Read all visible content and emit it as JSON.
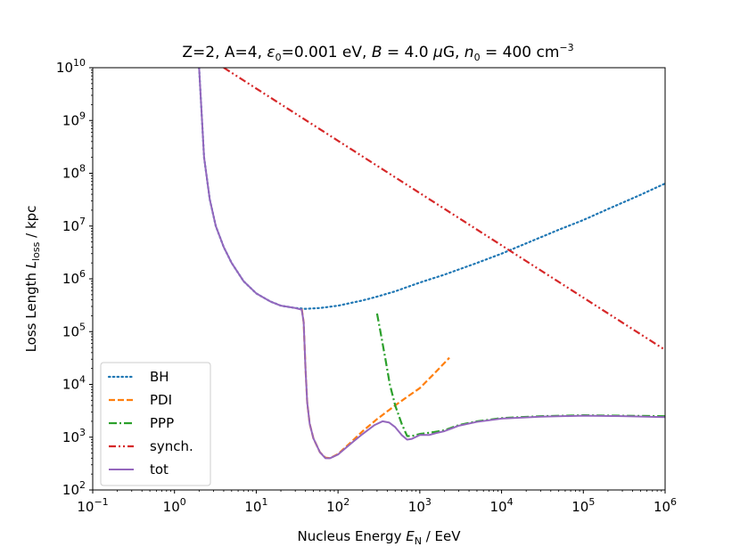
{
  "chart_data": {
    "type": "line",
    "title": {
      "prefix": "Z=2, A=4, ",
      "eps_sym": "ε",
      "eps_sub": "0",
      "eps_val": "=0.001 eV, ",
      "B_sym": "B",
      "B_val": " = 4.0 ",
      "B_unit_mu": "μ",
      "B_unit": "G, ",
      "n_sym": "n",
      "n_sub": "0",
      "n_val": " = 400 cm",
      "n_exp": "−3"
    },
    "xlabel": {
      "text": "Nucleus Energy ",
      "sym": "E",
      "sub": "N",
      "unit": " / EeV"
    },
    "ylabel": {
      "text": "Loss Length ",
      "sym": "L",
      "sub": "loss",
      "unit": " / kpc"
    },
    "x_scale": "log",
    "y_scale": "log",
    "xlim": [
      0.1,
      1000000
    ],
    "ylim": [
      100,
      10000000000
    ],
    "x_ticks": [
      {
        "base": "10",
        "exp": "−1",
        "value": 0.1
      },
      {
        "base": "10",
        "exp": "0",
        "value": 1
      },
      {
        "base": "10",
        "exp": "1",
        "value": 10
      },
      {
        "base": "10",
        "exp": "2",
        "value": 100
      },
      {
        "base": "10",
        "exp": "3",
        "value": 1000
      },
      {
        "base": "10",
        "exp": "4",
        "value": 10000
      },
      {
        "base": "10",
        "exp": "5",
        "value": 100000
      },
      {
        "base": "10",
        "exp": "6",
        "value": 1000000
      }
    ],
    "y_ticks": [
      {
        "base": "10",
        "exp": "2",
        "value": 100
      },
      {
        "base": "10",
        "exp": "3",
        "value": 1000
      },
      {
        "base": "10",
        "exp": "4",
        "value": 10000
      },
      {
        "base": "10",
        "exp": "5",
        "value": 100000
      },
      {
        "base": "10",
        "exp": "6",
        "value": 1000000
      },
      {
        "base": "10",
        "exp": "7",
        "value": 10000000
      },
      {
        "base": "10",
        "exp": "8",
        "value": 100000000
      },
      {
        "base": "10",
        "exp": "9",
        "value": 1000000000
      },
      {
        "base": "10",
        "exp": "10",
        "value": 10000000000
      }
    ],
    "grid": false,
    "legend_placement": "lower-left",
    "series": [
      {
        "name": "BH",
        "color": "#1f77b4",
        "style": "dotted",
        "points": [
          [
            2.0,
            10000000000.0
          ],
          [
            2.3,
            200000000.0
          ],
          [
            2.7,
            32000000.0
          ],
          [
            3.2,
            10000000.0
          ],
          [
            4.0,
            4000000.0
          ],
          [
            5.0,
            2000000.0
          ],
          [
            7.0,
            900000.0
          ],
          [
            10,
            530000.0
          ],
          [
            15,
            370000.0
          ],
          [
            20,
            310000.0
          ],
          [
            30,
            280000.0
          ],
          [
            40,
            270000.0
          ],
          [
            60,
            280000.0
          ],
          [
            100,
            310000.0
          ],
          [
            200,
            390000.0
          ],
          [
            300,
            460000.0
          ],
          [
            500,
            580000.0
          ],
          [
            1000,
            850000.0
          ],
          [
            2000,
            1200000.0
          ],
          [
            5000,
            2000000.0
          ],
          [
            10000,
            3000000.0
          ],
          [
            20000,
            4700000.0
          ],
          [
            50000,
            8500000.0
          ],
          [
            100000,
            13000000.0
          ],
          [
            200000,
            21000000.0
          ],
          [
            500000,
            39000000.0
          ],
          [
            1000000,
            64000000.0
          ]
        ]
      },
      {
        "name": "PDI",
        "color": "#ff7f0e",
        "style": "dashed",
        "points": [
          [
            36,
            270000.0
          ],
          [
            38,
            150000.0
          ],
          [
            40,
            20000.0
          ],
          [
            42,
            4500.0
          ],
          [
            45,
            1800.0
          ],
          [
            50,
            950.0
          ],
          [
            60,
            520.0
          ],
          [
            70,
            410.0
          ],
          [
            80,
            400.0
          ],
          [
            100,
            480.0
          ],
          [
            150,
            850.0
          ],
          [
            200,
            1300.0
          ],
          [
            300,
            2200.0
          ],
          [
            500,
            4000.0
          ],
          [
            700,
            5800.0
          ],
          [
            1000,
            8500.0
          ],
          [
            1500,
            16000.0
          ],
          [
            2300,
            32000.0
          ]
        ]
      },
      {
        "name": "PPP",
        "color": "#2ca02c",
        "style": "dashdot",
        "points": [
          [
            300,
            220000.0
          ],
          [
            330,
            100000.0
          ],
          [
            380,
            30000.0
          ],
          [
            430,
            10000.0
          ],
          [
            500,
            4000.0
          ],
          [
            600,
            1800.0
          ],
          [
            700,
            1050.0
          ],
          [
            800,
            1050.0
          ],
          [
            1000,
            1150.0
          ],
          [
            1500,
            1250.0
          ],
          [
            2000,
            1350.0
          ],
          [
            3000,
            1700.0
          ],
          [
            5000,
            2000.0
          ],
          [
            10000,
            2300.0
          ],
          [
            30000,
            2500.0
          ],
          [
            100000,
            2600.0
          ],
          [
            300000,
            2550.0
          ],
          [
            1000000,
            2500.0
          ]
        ]
      },
      {
        "name": "synch.",
        "color": "#d62728",
        "style": "dashdotdot",
        "points": [
          [
            4.0,
            10000000000.0
          ],
          [
            1000000,
            45000.0
          ]
        ]
      },
      {
        "name": "tot",
        "color": "#9467bd",
        "style": "solid",
        "points": [
          [
            2.0,
            10000000000.0
          ],
          [
            2.3,
            200000000.0
          ],
          [
            2.7,
            32000000.0
          ],
          [
            3.2,
            10000000.0
          ],
          [
            4.0,
            4000000.0
          ],
          [
            5.0,
            2000000.0
          ],
          [
            7.0,
            900000.0
          ],
          [
            10,
            530000.0
          ],
          [
            15,
            370000.0
          ],
          [
            20,
            310000.0
          ],
          [
            30,
            280000.0
          ],
          [
            36,
            260000.0
          ],
          [
            38,
            150000.0
          ],
          [
            40,
            20000.0
          ],
          [
            42,
            4500.0
          ],
          [
            45,
            1800.0
          ],
          [
            50,
            950.0
          ],
          [
            60,
            520.0
          ],
          [
            70,
            400.0
          ],
          [
            80,
            400.0
          ],
          [
            100,
            470.0
          ],
          [
            150,
            800.0
          ],
          [
            200,
            1150.0
          ],
          [
            280,
            1700.0
          ],
          [
            350,
            2000.0
          ],
          [
            420,
            1900.0
          ],
          [
            500,
            1550.0
          ],
          [
            600,
            1100.0
          ],
          [
            700,
            900.0
          ],
          [
            800,
            930.0
          ],
          [
            1000,
            1100.0
          ],
          [
            1300,
            1100.0
          ],
          [
            1600,
            1200.0
          ],
          [
            2000,
            1300.0
          ],
          [
            3000,
            1650.0
          ],
          [
            5000,
            1950.0
          ],
          [
            10000,
            2250.0
          ],
          [
            30000,
            2450.0
          ],
          [
            100000,
            2550.0
          ],
          [
            300000,
            2500.0
          ],
          [
            1000000,
            2400.0
          ]
        ]
      }
    ]
  }
}
